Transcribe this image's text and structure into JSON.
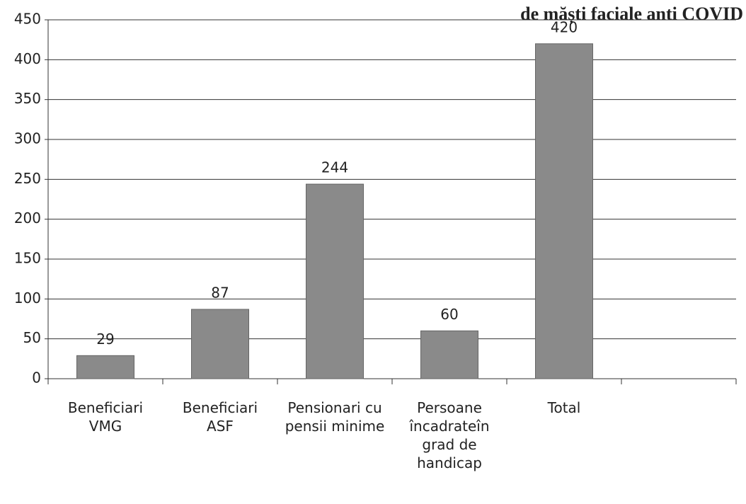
{
  "chart_data": {
    "type": "bar",
    "title": "de măști faciale anti COVID",
    "categories": [
      "Beneficiari VMG",
      "Beneficiari ASF",
      "Pensionari cu pensii minime",
      "Persoane încadrateîn grad de handicap",
      "Total",
      null
    ],
    "values": [
      29,
      87,
      244,
      60,
      420,
      null
    ],
    "color": "#8a8a8a",
    "ylim": [
      0,
      450
    ],
    "yticks": [
      0,
      50,
      100,
      150,
      200,
      250,
      300,
      350,
      400,
      450
    ],
    "grid": true
  }
}
